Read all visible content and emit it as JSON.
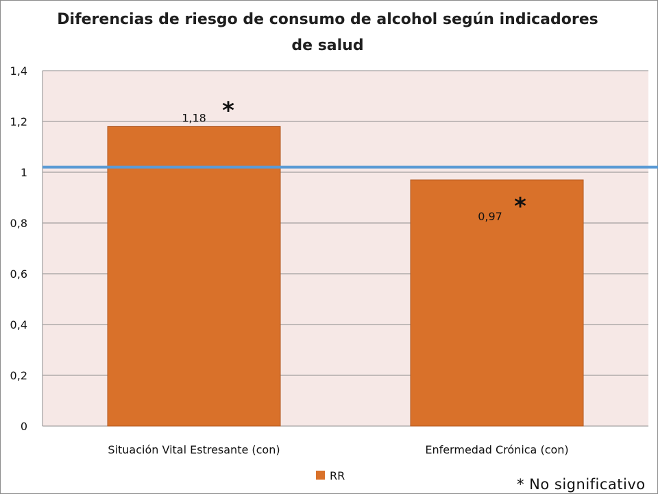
{
  "chart_data": {
    "type": "bar",
    "title_lines": [
      "Diferencias de riesgo de consumo de alcohol según indicadores",
      "de salud"
    ],
    "categories": [
      "Situación Vital Estresante (con)",
      "Enfermedad Crónica (con)"
    ],
    "series": [
      {
        "name": "RR",
        "values": [
          1.18,
          0.97
        ],
        "value_labels": [
          "1,18",
          "0,97"
        ],
        "color": "#D9712A"
      }
    ],
    "ylim": [
      0,
      1.4
    ],
    "yticks": [
      0,
      0.2,
      0.4,
      0.6,
      0.8,
      1,
      1.2,
      1.4
    ],
    "ytick_labels": [
      "0",
      "0,2",
      "0,4",
      "0,6",
      "0,8",
      "1",
      "1,2",
      "1,4"
    ],
    "grid": true,
    "legend_position": "bottom",
    "reference_line": {
      "value": 1.02,
      "color": "#5B9BD5"
    },
    "annotations": {
      "star": "*",
      "footnote": "* No significativo"
    },
    "plot_background": "#F6E8E6",
    "bar_border_color": "#B0561E",
    "xlabel": "",
    "ylabel": ""
  }
}
